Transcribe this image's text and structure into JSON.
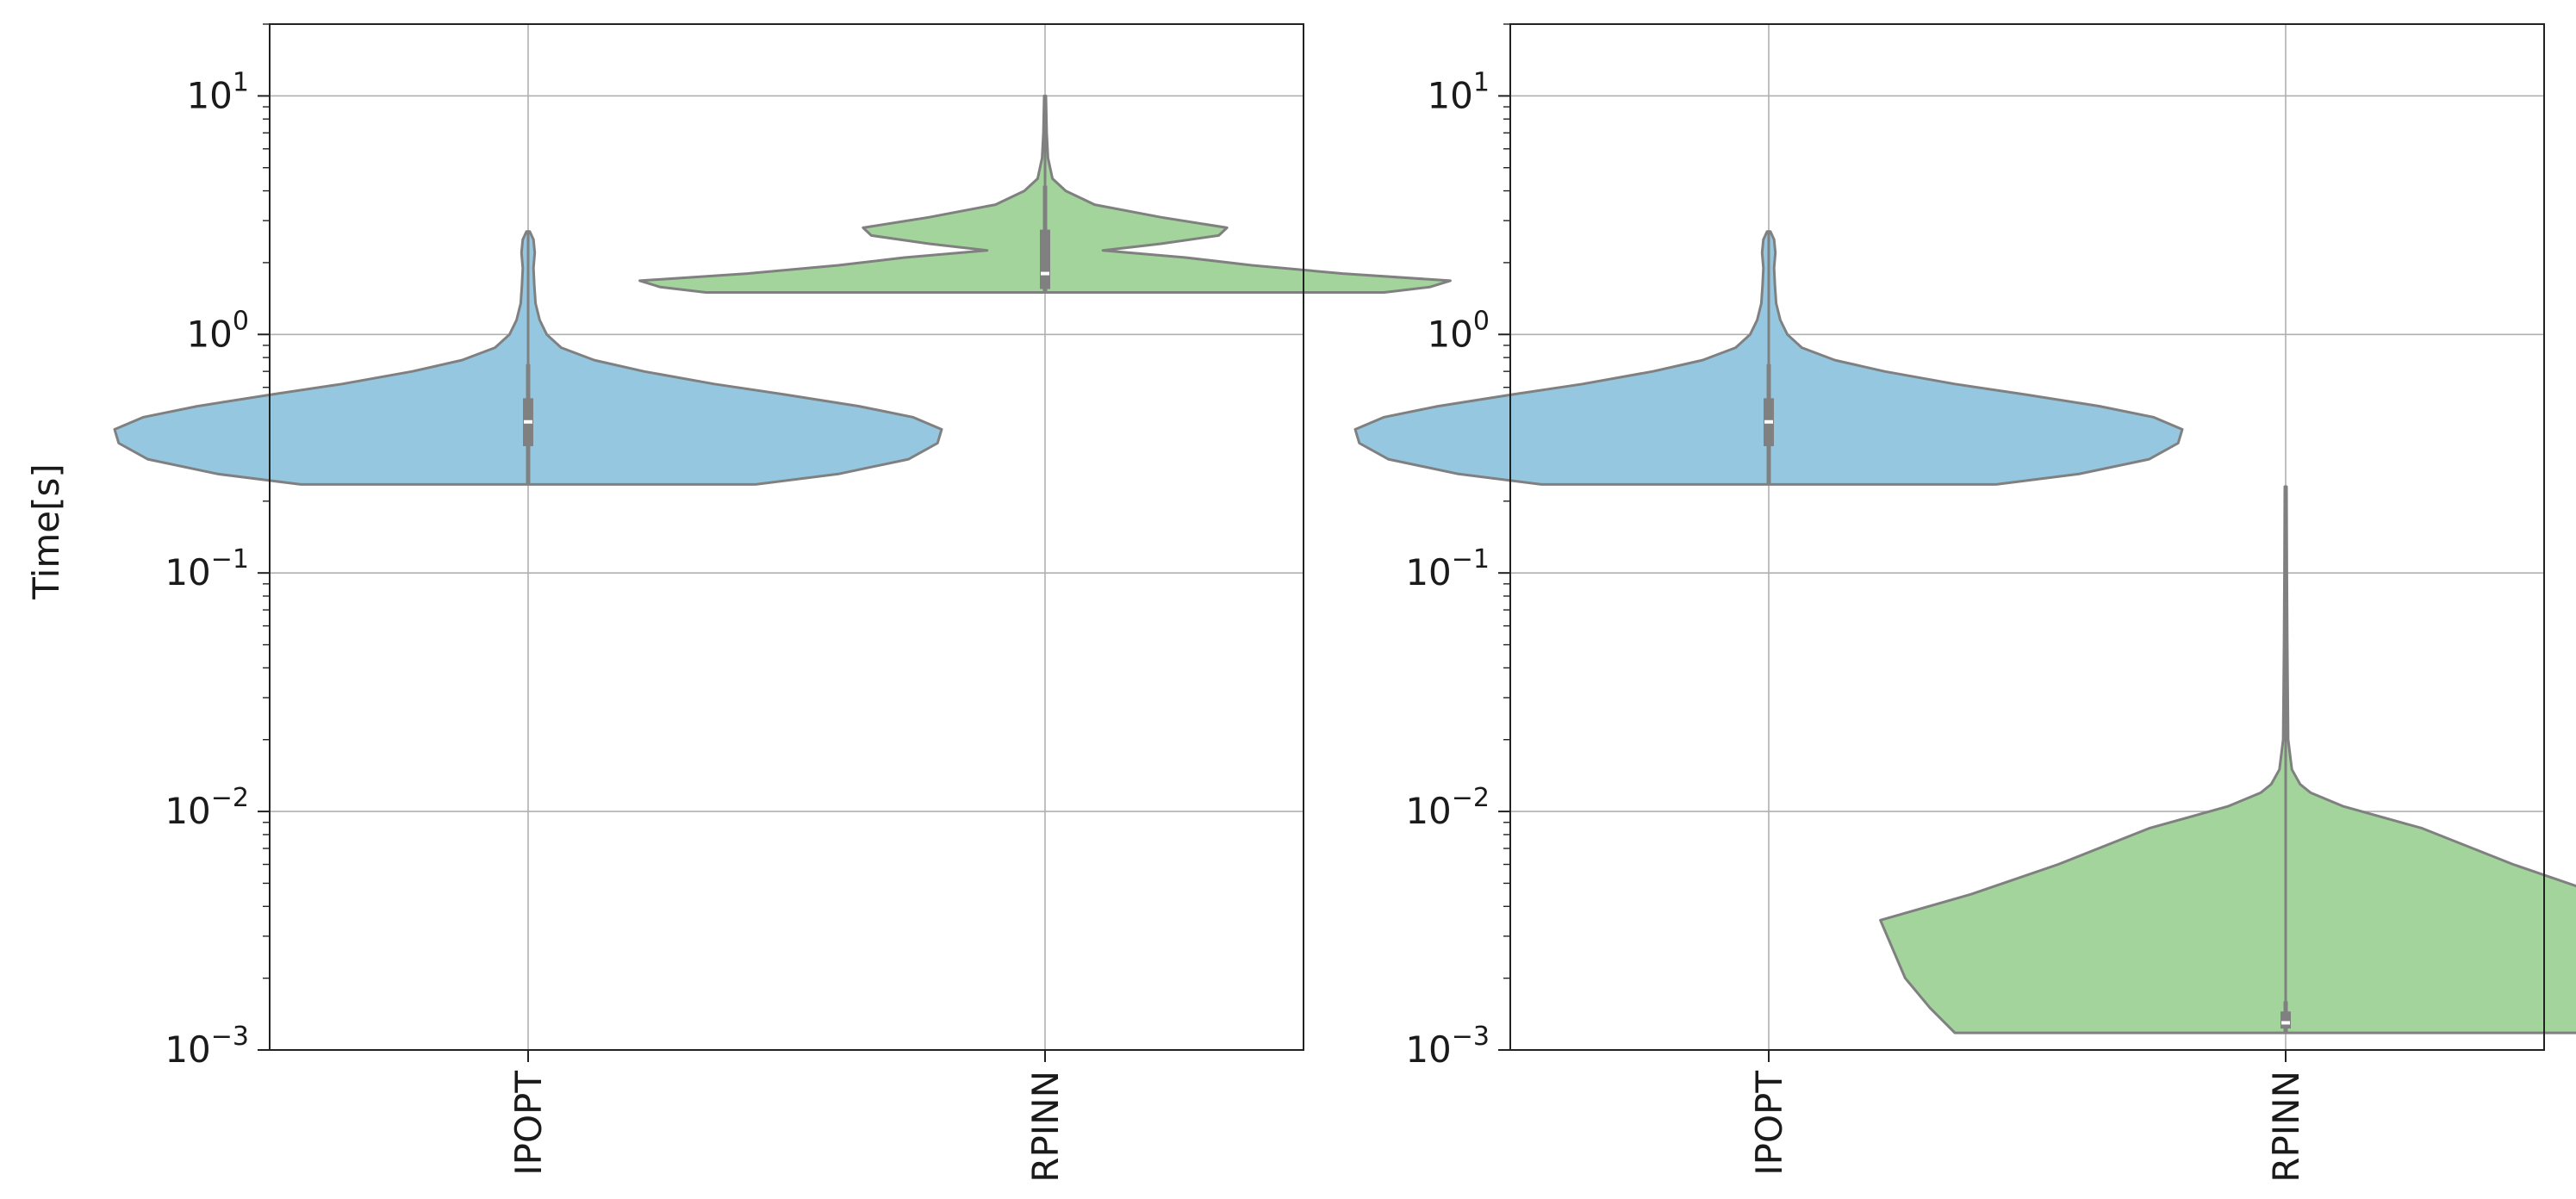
{
  "figure": {
    "ylabel": "Time[s]"
  },
  "chart_data": [
    {
      "type": "violin",
      "title": "",
      "xlabel": "",
      "ylabel": "Time[s]",
      "yscale": "log",
      "ylim": [
        0.001,
        20
      ],
      "yticks": [
        {
          "value": 0.001,
          "base": "10",
          "exp": "−3"
        },
        {
          "value": 0.01,
          "base": "10",
          "exp": "−2"
        },
        {
          "value": 0.1,
          "base": "10",
          "exp": "−1"
        },
        {
          "value": 1,
          "base": "10",
          "exp": "0"
        },
        {
          "value": 10,
          "base": "10",
          "exp": "1"
        }
      ],
      "grid": true,
      "categories": [
        "IPOPT",
        "RPINN"
      ],
      "violins": [
        {
          "category": "IPOPT",
          "color": "#95c8e0",
          "min": 0.235,
          "max": 2.7,
          "q1": 0.34,
          "median": 0.43,
          "q3": 0.54,
          "whisker_low": 0.235,
          "whisker_high": 0.75,
          "density": [
            [
              0.235,
              0.55
            ],
            [
              0.26,
              0.75
            ],
            [
              0.3,
              0.92
            ],
            [
              0.35,
              0.99
            ],
            [
              0.4,
              1.0
            ],
            [
              0.45,
              0.93
            ],
            [
              0.5,
              0.8
            ],
            [
              0.56,
              0.62
            ],
            [
              0.62,
              0.45
            ],
            [
              0.7,
              0.28
            ],
            [
              0.78,
              0.16
            ],
            [
              0.88,
              0.08
            ],
            [
              1.0,
              0.045
            ],
            [
              1.15,
              0.028
            ],
            [
              1.35,
              0.018
            ],
            [
              1.6,
              0.015
            ],
            [
              1.9,
              0.013
            ],
            [
              2.2,
              0.016
            ],
            [
              2.5,
              0.013
            ],
            [
              2.7,
              0.004
            ]
          ]
        },
        {
          "category": "RPINN",
          "color": "#a2d49c",
          "min": 1.5,
          "max": 10,
          "q1": 1.55,
          "median": 1.8,
          "q3": 2.75,
          "whisker_low": 1.5,
          "whisker_high": 4.2,
          "density": [
            [
              1.5,
              0.82
            ],
            [
              1.58,
              0.93
            ],
            [
              1.68,
              0.98
            ],
            [
              1.8,
              0.72
            ],
            [
              1.95,
              0.5
            ],
            [
              2.1,
              0.34
            ],
            [
              2.25,
              0.14
            ],
            [
              2.4,
              0.28
            ],
            [
              2.6,
              0.42
            ],
            [
              2.8,
              0.44
            ],
            [
              3.1,
              0.28
            ],
            [
              3.5,
              0.12
            ],
            [
              4.0,
              0.05
            ],
            [
              4.5,
              0.018
            ],
            [
              5.5,
              0.007
            ],
            [
              7,
              0.004
            ],
            [
              10,
              0.002
            ]
          ]
        }
      ]
    },
    {
      "type": "violin",
      "title": "",
      "xlabel": "",
      "ylabel": "",
      "yscale": "log",
      "ylim": [
        0.001,
        20
      ],
      "yticks": [
        {
          "value": 0.001,
          "base": "10",
          "exp": "−3"
        },
        {
          "value": 0.01,
          "base": "10",
          "exp": "−2"
        },
        {
          "value": 0.1,
          "base": "10",
          "exp": "−1"
        },
        {
          "value": 1,
          "base": "10",
          "exp": "0"
        },
        {
          "value": 10,
          "base": "10",
          "exp": "1"
        }
      ],
      "grid": true,
      "categories": [
        "IPOPT",
        "RPINN"
      ],
      "violins": [
        {
          "category": "IPOPT",
          "color": "#95c8e0",
          "min": 0.235,
          "max": 2.7,
          "q1": 0.34,
          "median": 0.43,
          "q3": 0.54,
          "whisker_low": 0.235,
          "whisker_high": 0.75,
          "density": [
            [
              0.235,
              0.55
            ],
            [
              0.26,
              0.75
            ],
            [
              0.3,
              0.92
            ],
            [
              0.35,
              0.99
            ],
            [
              0.4,
              1.0
            ],
            [
              0.45,
              0.93
            ],
            [
              0.5,
              0.8
            ],
            [
              0.56,
              0.62
            ],
            [
              0.62,
              0.45
            ],
            [
              0.7,
              0.28
            ],
            [
              0.78,
              0.16
            ],
            [
              0.88,
              0.08
            ],
            [
              1.0,
              0.045
            ],
            [
              1.15,
              0.028
            ],
            [
              1.35,
              0.018
            ],
            [
              1.6,
              0.015
            ],
            [
              1.9,
              0.013
            ],
            [
              2.2,
              0.016
            ],
            [
              2.5,
              0.013
            ],
            [
              2.7,
              0.004
            ]
          ]
        },
        {
          "category": "RPINN",
          "color": "#a2d49c",
          "min": 0.00118,
          "max": 0.23,
          "q1": 0.00123,
          "median": 0.0013,
          "q3": 0.00145,
          "whisker_low": 0.00118,
          "whisker_high": 0.0016,
          "density": [
            [
              0.00118,
              0.8
            ],
            [
              0.0015,
              0.86
            ],
            [
              0.002,
              0.92
            ],
            [
              0.0035,
              0.98
            ],
            [
              0.0045,
              0.76
            ],
            [
              0.006,
              0.55
            ],
            [
              0.0085,
              0.33
            ],
            [
              0.0105,
              0.14
            ],
            [
              0.012,
              0.06
            ],
            [
              0.013,
              0.035
            ],
            [
              0.015,
              0.015
            ],
            [
              0.02,
              0.006
            ],
            [
              0.05,
              0.004
            ],
            [
              0.1,
              0.003
            ],
            [
              0.23,
              0.002
            ]
          ]
        }
      ]
    }
  ]
}
